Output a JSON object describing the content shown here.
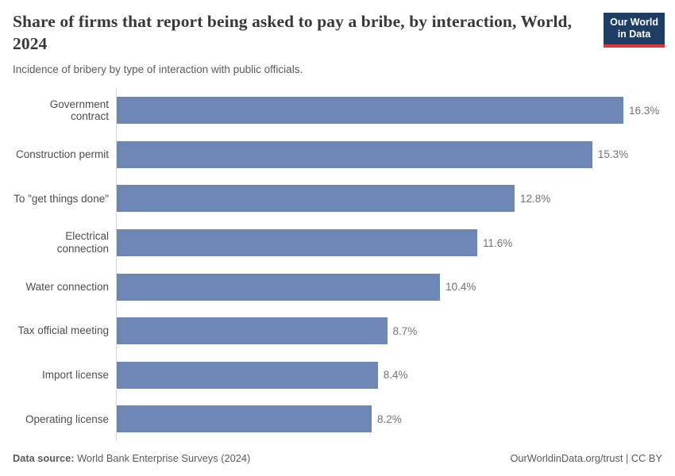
{
  "header": {
    "title": "Share of firms that report being asked to pay a bribe, by interaction, World, 2024",
    "subtitle": "Incidence of bribery by type of interaction with public officials.",
    "logo": {
      "line1": "Our World",
      "line2": "in Data"
    }
  },
  "chart_data": {
    "type": "bar",
    "orientation": "horizontal",
    "categories": [
      "Government contract",
      "Construction permit",
      "To \"get things done\"",
      "Electrical connection",
      "Water connection",
      "Tax official meeting",
      "Import license",
      "Operating license"
    ],
    "values": [
      16.3,
      15.3,
      12.8,
      11.6,
      10.4,
      8.7,
      8.4,
      8.2
    ],
    "value_labels": [
      "16.3%",
      "15.3%",
      "12.8%",
      "11.6%",
      "10.4%",
      "8.7%",
      "8.4%",
      "8.2%"
    ],
    "title": "Share of firms that report being asked to pay a bribe, by interaction, World, 2024",
    "subtitle": "Incidence of bribery by type of interaction with public officials.",
    "xlabel": "",
    "ylabel": "",
    "xlim": [
      0,
      16.3
    ],
    "grid": false,
    "legend_position": "none",
    "bar_color": "#6c87b4"
  },
  "footer": {
    "datasource_label": "Data source:",
    "datasource_value": " World Bank Enterprise Surveys (2024)",
    "credit": "OurWorldinData.org/trust | CC BY"
  },
  "colors": {
    "bar": "#6c87b4",
    "logo_bg": "#1d3d63",
    "logo_accent": "#e0373f",
    "axis_line": "#dadada",
    "title_text": "#383838",
    "muted_text": "#5b5b5b",
    "value_text": "#737373"
  }
}
